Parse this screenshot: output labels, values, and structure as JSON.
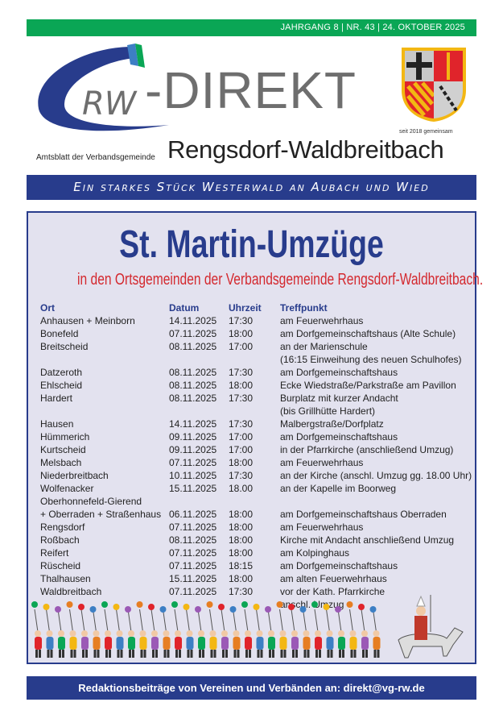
{
  "header": {
    "issue_line": "JAHRGANG 8 | NR. 43 | 24. OKTOBER 2025",
    "logo_text": "RW-DIREKT",
    "logo_direkt": "-DIREKT",
    "crest_caption": "seit 2018 gemeinsam",
    "amtsblatt": "Amtsblatt der Verbandsgemeinde",
    "region": "Rengsdorf-Waldbreitbach",
    "slogan": "Ein starkes Stück Westerwald an Aubach und Wied",
    "colors": {
      "green": "#0aa655",
      "navy": "#283c8c",
      "red": "#d4282e"
    }
  },
  "article": {
    "title": "St. Martin-Umzüge",
    "subtitle": "in den Ortsgemeinden der Verbandsgemeinde Rengsdorf-Waldbreitbach.",
    "columns": [
      "Ort",
      "Datum",
      "Uhrzeit",
      "Treffpunkt"
    ],
    "rows": [
      [
        "Anhausen + Meinborn",
        "14.11.2025",
        "17:30",
        "am Feuerwehrhaus"
      ],
      [
        "Bonefeld",
        "07.11.2025",
        "18:00",
        "am Dorfgemeinschaftshaus (Alte Schule)"
      ],
      [
        "Breitscheid",
        "08.11.2025",
        "17:00",
        "an der Marienschule"
      ],
      [
        "",
        "",
        "",
        "(16:15 Einweihung des neuen Schulhofes)"
      ],
      [
        "Datzeroth",
        "08.11.2025",
        "17:30",
        "am Dorfgemeinschaftshaus"
      ],
      [
        "Ehlscheid",
        "08.11.2025",
        "18:00",
        "Ecke Wiedstraße/Parkstraße am Pavillon"
      ],
      [
        "Hardert",
        "08.11.2025",
        "17:30",
        "Burplatz mit kurzer Andacht"
      ],
      [
        "",
        "",
        "",
        "(bis Grillhütte Hardert)"
      ],
      [
        "Hausen",
        "14.11.2025",
        "17:30",
        "Malbergstraße/Dorfplatz"
      ],
      [
        "Hümmerich",
        "09.11.2025",
        "17:00",
        "am Dorfgemeinschaftshaus"
      ],
      [
        "Kurtscheid",
        "09.11.2025",
        "17:00",
        "in der Pfarrkirche (anschließend Umzug)"
      ],
      [
        "Melsbach",
        "07.11.2025",
        "18:00",
        "am Feuerwehrhaus"
      ],
      [
        "Niederbreitbach",
        "10.11.2025",
        "17:30",
        "an der Kirche (anschl. Umzug gg. 18.00 Uhr)"
      ],
      [
        "Wolfenacker",
        "15.11.2025",
        "18.00",
        "an der Kapelle im Boorweg"
      ],
      [
        "Oberhonnefeld-Gierend",
        "",
        "",
        ""
      ],
      [
        "+ Oberraden + Straßenhaus",
        "06.11.2025",
        "18:00",
        "am Dorfgemeinschaftshaus Oberraden"
      ],
      [
        "Rengsdorf",
        "07.11.2025",
        "18:00",
        "am Feuerwehrhaus"
      ],
      [
        "Roßbach",
        "08.11.2025",
        "18:00",
        "Kirche mit Andacht anschließend Umzug"
      ],
      [
        "Reifert",
        "07.11.2025",
        "18:00",
        "am Kolpinghaus"
      ],
      [
        "Rüscheid",
        "07.11.2025",
        "18:15",
        "am Dorfgemeinschaftshaus"
      ],
      [
        "Thalhausen",
        "15.11.2025",
        "18:00",
        "am alten Feuerwehrhaus"
      ],
      [
        "Waldbreitbach",
        "07.11.2025",
        "17:30",
        "vor der Kath. Pfarrkirche"
      ],
      [
        "",
        "",
        "",
        "anschl. Umzug"
      ]
    ]
  },
  "footer": {
    "text": "Redaktionsbeiträge von Vereinen und Verbänden an: direkt@vg-rw.de"
  }
}
